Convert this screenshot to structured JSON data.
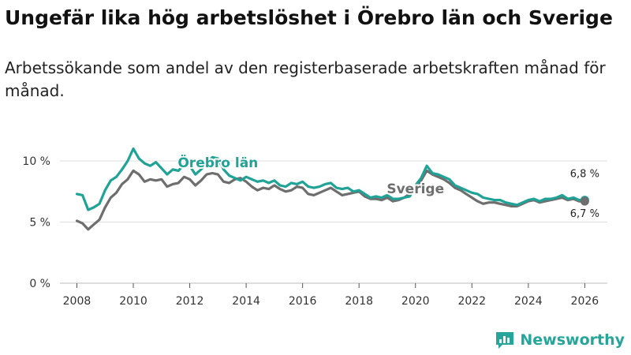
{
  "title": "Ungefär lika hög arbetslöshet i Örebro län och Sverige",
  "subtitle": "Arbetssökande som andel av den registerbaserade arbetskraften månad för månad.",
  "brand": "Newsworthy",
  "colors": {
    "orebro": "#1fa396",
    "sverige": "#6e6e6e",
    "grid": "#dddddd"
  },
  "chart_data": {
    "type": "line",
    "title": "Ungefär lika hög arbetslöshet i Örebro län och Sverige",
    "xlabel": "",
    "ylabel": "",
    "xlim": [
      2007.4,
      2026.8
    ],
    "ylim": [
      0,
      10
    ],
    "yticks": [
      0,
      5,
      10
    ],
    "ytick_labels": [
      "0 %",
      "5 %",
      "10 %"
    ],
    "xticks": [
      2008,
      2010,
      2012,
      2014,
      2016,
      2018,
      2020,
      2022,
      2024,
      2026
    ],
    "xtick_labels": [
      "2008",
      "2010",
      "2012",
      "2014",
      "2016",
      "2018",
      "2020",
      "2022",
      "2024",
      "2026"
    ],
    "series": [
      {
        "name": "Örebro län",
        "label": "Örebro län",
        "end_label": "6,8 %",
        "x": [
          2008.0,
          2008.2,
          2008.4,
          2008.6,
          2008.8,
          2009.0,
          2009.2,
          2009.4,
          2009.6,
          2009.8,
          2010.0,
          2010.2,
          2010.4,
          2010.6,
          2010.8,
          2011.0,
          2011.2,
          2011.4,
          2011.6,
          2011.8,
          2012.0,
          2012.2,
          2012.4,
          2012.6,
          2012.8,
          2013.0,
          2013.2,
          2013.4,
          2013.6,
          2013.8,
          2014.0,
          2014.2,
          2014.4,
          2014.6,
          2014.8,
          2015.0,
          2015.2,
          2015.4,
          2015.6,
          2015.8,
          2016.0,
          2016.2,
          2016.4,
          2016.6,
          2016.8,
          2017.0,
          2017.2,
          2017.4,
          2017.6,
          2017.8,
          2018.0,
          2018.2,
          2018.4,
          2018.6,
          2018.8,
          2019.0,
          2019.2,
          2019.4,
          2019.6,
          2019.8,
          2020.0,
          2020.2,
          2020.4,
          2020.6,
          2020.8,
          2021.0,
          2021.2,
          2021.4,
          2021.6,
          2021.8,
          2022.0,
          2022.2,
          2022.4,
          2022.6,
          2022.8,
          2023.0,
          2023.2,
          2023.4,
          2023.6,
          2023.8,
          2024.0,
          2024.2,
          2024.4,
          2024.6,
          2024.8,
          2025.0,
          2025.2,
          2025.4,
          2025.6,
          2025.8,
          2026.0
        ],
        "y": [
          7.3,
          7.2,
          6.0,
          6.2,
          6.5,
          7.6,
          8.4,
          8.7,
          9.3,
          10.0,
          11.0,
          10.2,
          9.8,
          9.6,
          9.9,
          9.4,
          8.9,
          9.3,
          9.2,
          9.7,
          9.6,
          8.9,
          9.3,
          9.8,
          10.3,
          10.2,
          9.3,
          8.8,
          8.6,
          8.4,
          8.7,
          8.5,
          8.3,
          8.4,
          8.2,
          8.4,
          8.0,
          7.9,
          8.2,
          8.1,
          8.3,
          7.9,
          7.8,
          7.9,
          8.1,
          8.2,
          7.8,
          7.7,
          7.8,
          7.5,
          7.6,
          7.3,
          7.0,
          7.1,
          7.0,
          7.2,
          6.9,
          6.9,
          7.0,
          7.1,
          8.0,
          8.6,
          9.6,
          9.0,
          8.9,
          8.7,
          8.5,
          8.0,
          7.8,
          7.6,
          7.4,
          7.3,
          7.0,
          6.9,
          6.8,
          6.8,
          6.6,
          6.5,
          6.4,
          6.6,
          6.8,
          6.9,
          6.7,
          6.9,
          6.9,
          7.0,
          7.2,
          6.9,
          7.0,
          6.8,
          6.8
        ]
      },
      {
        "name": "Sverige",
        "label": "Sverige",
        "end_label": "6,7 %",
        "x": [
          2008.0,
          2008.2,
          2008.4,
          2008.6,
          2008.8,
          2009.0,
          2009.2,
          2009.4,
          2009.6,
          2009.8,
          2010.0,
          2010.2,
          2010.4,
          2010.6,
          2010.8,
          2011.0,
          2011.2,
          2011.4,
          2011.6,
          2011.8,
          2012.0,
          2012.2,
          2012.4,
          2012.6,
          2012.8,
          2013.0,
          2013.2,
          2013.4,
          2013.6,
          2013.8,
          2014.0,
          2014.2,
          2014.4,
          2014.6,
          2014.8,
          2015.0,
          2015.2,
          2015.4,
          2015.6,
          2015.8,
          2016.0,
          2016.2,
          2016.4,
          2016.6,
          2016.8,
          2017.0,
          2017.2,
          2017.4,
          2017.6,
          2017.8,
          2018.0,
          2018.2,
          2018.4,
          2018.6,
          2018.8,
          2019.0,
          2019.2,
          2019.4,
          2019.6,
          2019.8,
          2020.0,
          2020.2,
          2020.4,
          2020.6,
          2020.8,
          2021.0,
          2021.2,
          2021.4,
          2021.6,
          2021.8,
          2022.0,
          2022.2,
          2022.4,
          2022.6,
          2022.8,
          2023.0,
          2023.2,
          2023.4,
          2023.6,
          2023.8,
          2024.0,
          2024.2,
          2024.4,
          2024.6,
          2024.8,
          2025.0,
          2025.2,
          2025.4,
          2025.6,
          2025.8,
          2026.0
        ],
        "y": [
          5.1,
          4.9,
          4.4,
          4.8,
          5.2,
          6.2,
          7.0,
          7.4,
          8.1,
          8.5,
          9.2,
          8.9,
          8.3,
          8.5,
          8.4,
          8.5,
          7.9,
          8.1,
          8.2,
          8.7,
          8.5,
          8.0,
          8.4,
          8.9,
          9.0,
          8.9,
          8.3,
          8.2,
          8.5,
          8.6,
          8.3,
          7.9,
          7.6,
          7.8,
          7.7,
          8.0,
          7.7,
          7.5,
          7.6,
          7.9,
          7.8,
          7.3,
          7.2,
          7.4,
          7.6,
          7.8,
          7.5,
          7.2,
          7.3,
          7.4,
          7.5,
          7.1,
          6.9,
          6.9,
          6.8,
          7.0,
          6.7,
          6.8,
          7.0,
          7.3,
          7.8,
          8.4,
          9.2,
          8.9,
          8.7,
          8.5,
          8.2,
          7.8,
          7.6,
          7.3,
          7.0,
          6.7,
          6.5,
          6.6,
          6.6,
          6.5,
          6.4,
          6.3,
          6.3,
          6.5,
          6.7,
          6.8,
          6.6,
          6.7,
          6.8,
          6.9,
          7.0,
          6.8,
          6.9,
          6.7,
          6.7
        ]
      }
    ]
  }
}
